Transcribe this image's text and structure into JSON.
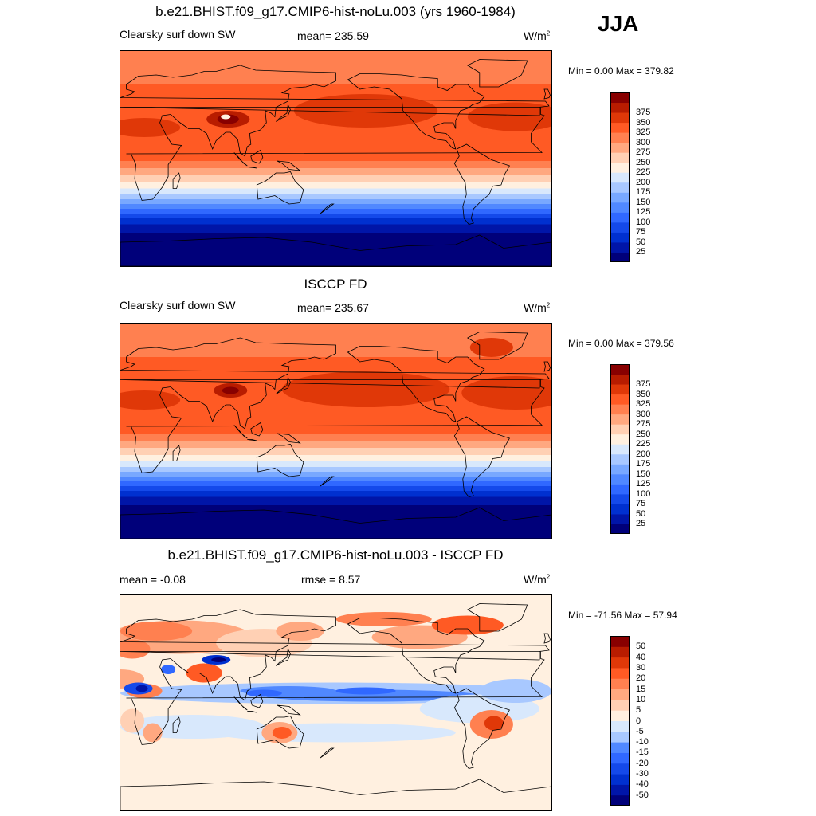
{
  "season": "JJA",
  "panels": [
    {
      "title": "b.e21.BHIST.f09_g17.CMIP6-hist-noLu.003 (yrs 1960-1984)",
      "left_label": "Clearsky surf down SW",
      "center_label": "mean= 235.59",
      "units": "W/m",
      "units_sup": "2",
      "minmax": "Min =   0.00 Max = 379.82",
      "type": "abs"
    },
    {
      "title": "ISCCP FD",
      "left_label": "Clearsky surf down SW",
      "center_label": "mean= 235.67",
      "units": "W/m",
      "units_sup": "2",
      "minmax": "Min =   0.00 Max = 379.56",
      "type": "abs"
    },
    {
      "title": "b.e21.BHIST.f09_g17.CMIP6-hist-noLu.003 - ISCCP FD",
      "left_label": "mean =  -0.08",
      "center_label": "rmse =   8.57",
      "units": "W/m",
      "units_sup": "2",
      "minmax": "Min = -71.56 Max =  57.94",
      "type": "diff"
    }
  ],
  "chart_data": [
    {
      "type": "heatmap",
      "title": "b.e21.BHIST.f09_g17.CMIP6-hist-noLu.003 (yrs 1960-1984)",
      "variable": "Clearsky surf down SW",
      "mean": 235.59,
      "min": 0.0,
      "max": 379.82,
      "units": "W/m2",
      "colorbar_levels": [
        25,
        50,
        75,
        100,
        125,
        150,
        175,
        200,
        225,
        250,
        275,
        300,
        325,
        350,
        375
      ],
      "colors": [
        "#00007a",
        "#0015a8",
        "#0030d0",
        "#1449ea",
        "#3068ff",
        "#5088ff",
        "#78a8ff",
        "#a8c8ff",
        "#d8e8fc",
        "#fff0e0",
        "#ffd0b4",
        "#ffa880",
        "#ff8050",
        "#ff5a24",
        "#e03808",
        "#b81c00",
        "#880000"
      ]
    },
    {
      "type": "heatmap",
      "title": "ISCCP FD",
      "variable": "Clearsky surf down SW",
      "mean": 235.67,
      "min": 0.0,
      "max": 379.56,
      "units": "W/m2",
      "colorbar_levels": [
        25,
        50,
        75,
        100,
        125,
        150,
        175,
        200,
        225,
        250,
        275,
        300,
        325,
        350,
        375
      ],
      "colors": [
        "#00007a",
        "#0015a8",
        "#0030d0",
        "#1449ea",
        "#3068ff",
        "#5088ff",
        "#78a8ff",
        "#a8c8ff",
        "#d8e8fc",
        "#fff0e0",
        "#ffd0b4",
        "#ffa880",
        "#ff8050",
        "#ff5a24",
        "#e03808",
        "#b81c00",
        "#880000"
      ]
    },
    {
      "type": "heatmap",
      "title": "b.e21.BHIST.f09_g17.CMIP6-hist-noLu.003 - ISCCP FD",
      "mean": -0.08,
      "rmse": 8.57,
      "min": -71.56,
      "max": 57.94,
      "units": "W/m2",
      "colorbar_levels": [
        -50,
        -40,
        -30,
        -20,
        -15,
        -10,
        -5,
        0,
        5,
        10,
        15,
        20,
        30,
        40,
        50
      ],
      "colors": [
        "#00007a",
        "#0015a8",
        "#0030d0",
        "#1449ea",
        "#3068ff",
        "#5088ff",
        "#a8c8ff",
        "#d8e8fc",
        "#fff0e0",
        "#ffd0b4",
        "#ffa880",
        "#ff8050",
        "#ff5a24",
        "#e03808",
        "#b81c00",
        "#880000"
      ]
    }
  ]
}
